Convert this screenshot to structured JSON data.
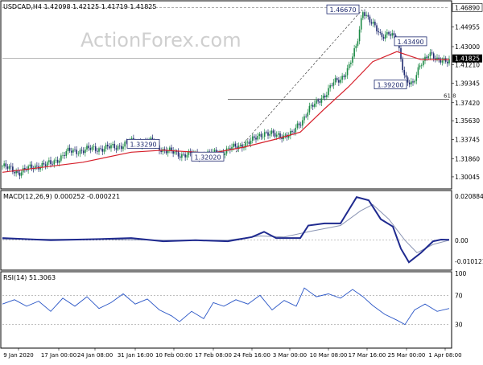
{
  "chart_data": [
    {
      "type": "candlestick",
      "panel": "price",
      "title": "USDCAD,H4  1.42098 1.42125 1.41719 1.41825",
      "watermark": "ActionForex.com",
      "ylim": [
        1.29,
        1.474
      ],
      "y_ticks": [
        1.30045,
        1.3186,
        1.33745,
        1.3563,
        1.3742,
        1.39345,
        1.4121,
        1.43,
        1.44955,
        1.4689
      ],
      "y_tick_labels": [
        "1.30045",
        "1.31860",
        "1.33745",
        "1.35630",
        "1.37420",
        "1.39345",
        "1.41210",
        "1.43000",
        "1.44955"
      ],
      "top_label": "1.46890",
      "current_price": 1.41825,
      "current_price_label": "1.41825",
      "price_series_anchors": [
        [
          0,
          1.311
        ],
        [
          20,
          1.305
        ],
        [
          45,
          1.312
        ],
        [
          60,
          1.313
        ],
        [
          80,
          1.325
        ],
        [
          110,
          1.328
        ],
        [
          140,
          1.33
        ],
        [
          160,
          1.335
        ],
        [
          185,
          1.335
        ],
        [
          200,
          1.327
        ],
        [
          220,
          1.323
        ],
        [
          245,
          1.322
        ],
        [
          268,
          1.324
        ],
        [
          290,
          1.33
        ],
        [
          310,
          1.336
        ],
        [
          325,
          1.345
        ],
        [
          340,
          1.341
        ],
        [
          360,
          1.343
        ],
        [
          368,
          1.352
        ],
        [
          372,
          1.356
        ],
        [
          380,
          1.368
        ],
        [
          390,
          1.373
        ],
        [
          400,
          1.382
        ],
        [
          410,
          1.393
        ],
        [
          420,
          1.397
        ],
        [
          430,
          1.41
        ],
        [
          440,
          1.43
        ],
        [
          448,
          1.467
        ],
        [
          460,
          1.452
        ],
        [
          470,
          1.44
        ],
        [
          480,
          1.445
        ],
        [
          490,
          1.435
        ],
        [
          500,
          1.4
        ],
        [
          510,
          1.392
        ],
        [
          520,
          1.413
        ],
        [
          530,
          1.425
        ],
        [
          540,
          1.415
        ],
        [
          555,
          1.418
        ]
      ],
      "moving_average": [
        [
          0,
          1.305
        ],
        [
          100,
          1.315
        ],
        [
          160,
          1.325
        ],
        [
          200,
          1.327
        ],
        [
          260,
          1.324
        ],
        [
          300,
          1.33
        ],
        [
          340,
          1.338
        ],
        [
          370,
          1.345
        ],
        [
          400,
          1.368
        ],
        [
          430,
          1.39
        ],
        [
          460,
          1.415
        ],
        [
          490,
          1.425
        ],
        [
          520,
          1.417
        ],
        [
          555,
          1.417
        ]
      ],
      "annotations": [
        {
          "label": "1.46670",
          "value": 1.4667
        },
        {
          "label": "1.43490",
          "value": 1.4349
        },
        {
          "label": "1.39200",
          "value": 1.392
        },
        {
          "label": "1.33290",
          "value": 1.3329
        },
        {
          "label": "1.32020",
          "value": 1.3202
        }
      ],
      "fib_level": {
        "label": "61.8",
        "value": 1.3776
      }
    },
    {
      "type": "line",
      "panel": "macd",
      "title": "MACD(12,26,9) 0.000252 -0.000221",
      "ylim": [
        -0.0135,
        0.0225
      ],
      "y_ticks": [
        0.020884,
        0.0,
        -0.010121
      ],
      "y_tick_labels": [
        "0.020884",
        "0.00",
        "-0.010121"
      ],
      "macd": [
        [
          0,
          0.001
        ],
        [
          60,
          0.0
        ],
        [
          120,
          0.0005
        ],
        [
          160,
          0.001
        ],
        [
          200,
          -0.0005
        ],
        [
          240,
          0.0
        ],
        [
          280,
          -0.0005
        ],
        [
          310,
          0.0015
        ],
        [
          325,
          0.004
        ],
        [
          340,
          0.001
        ],
        [
          370,
          0.001
        ],
        [
          380,
          0.007
        ],
        [
          400,
          0.008
        ],
        [
          420,
          0.008
        ],
        [
          440,
          0.0205
        ],
        [
          455,
          0.019
        ],
        [
          470,
          0.01
        ],
        [
          485,
          0.0065
        ],
        [
          495,
          -0.004
        ],
        [
          505,
          -0.0105
        ],
        [
          520,
          -0.006
        ],
        [
          535,
          -0.0005
        ],
        [
          545,
          0.0003
        ],
        [
          555,
          0.0002
        ]
      ],
      "signal": [
        [
          0,
          0.0005
        ],
        [
          120,
          0.0004
        ],
        [
          200,
          0.0
        ],
        [
          280,
          0.0
        ],
        [
          320,
          0.002
        ],
        [
          350,
          0.0015
        ],
        [
          380,
          0.004
        ],
        [
          420,
          0.007
        ],
        [
          445,
          0.014
        ],
        [
          460,
          0.017
        ],
        [
          480,
          0.01
        ],
        [
          500,
          0.0
        ],
        [
          515,
          -0.006
        ],
        [
          535,
          -0.002
        ],
        [
          555,
          0.0
        ]
      ]
    },
    {
      "type": "line",
      "panel": "rsi",
      "title": "RSI(14) 51.3063",
      "ylim": [
        0,
        100
      ],
      "y_ticks": [
        100,
        70,
        50,
        30
      ],
      "y_tick_labels": [
        "100",
        "70",
        "",
        "30"
      ],
      "rsi": [
        [
          0,
          58
        ],
        [
          15,
          64
        ],
        [
          30,
          55
        ],
        [
          45,
          62
        ],
        [
          60,
          48
        ],
        [
          75,
          66
        ],
        [
          90,
          55
        ],
        [
          105,
          68
        ],
        [
          120,
          52
        ],
        [
          135,
          60
        ],
        [
          150,
          72
        ],
        [
          165,
          58
        ],
        [
          180,
          65
        ],
        [
          195,
          50
        ],
        [
          210,
          42
        ],
        [
          220,
          34
        ],
        [
          235,
          48
        ],
        [
          250,
          38
        ],
        [
          262,
          60
        ],
        [
          275,
          55
        ],
        [
          290,
          64
        ],
        [
          305,
          58
        ],
        [
          320,
          70
        ],
        [
          335,
          50
        ],
        [
          350,
          63
        ],
        [
          365,
          55
        ],
        [
          375,
          80
        ],
        [
          390,
          68
        ],
        [
          405,
          72
        ],
        [
          420,
          66
        ],
        [
          435,
          78
        ],
        [
          448,
          68
        ],
        [
          460,
          56
        ],
        [
          475,
          44
        ],
        [
          490,
          36
        ],
        [
          500,
          30
        ],
        [
          512,
          50
        ],
        [
          525,
          58
        ],
        [
          540,
          48
        ],
        [
          555,
          52
        ]
      ]
    }
  ],
  "x_axis_labels": [
    {
      "label": "9 Jan 2020",
      "x": 20
    },
    {
      "label": "17 Jan 00:00",
      "x": 70
    },
    {
      "label": "24 Jan 08:00",
      "x": 115
    },
    {
      "label": "31 Jan 16:00",
      "x": 165
    },
    {
      "label": "10 Feb 00:00",
      "x": 213
    },
    {
      "label": "17 Feb 08:00",
      "x": 262
    },
    {
      "label": "24 Feb 16:00",
      "x": 310
    },
    {
      "label": "3 Mar 00:00",
      "x": 357
    },
    {
      "label": "10 Mar 08:00",
      "x": 405
    },
    {
      "label": "17 Mar 16:00",
      "x": 453
    },
    {
      "label": "25 Mar 00:00",
      "x": 502
    },
    {
      "label": "1 Apr 08:00",
      "x": 550
    }
  ],
  "colors": {
    "up_candle": "#1c8a45",
    "down_candle": "#1f2a6f",
    "moving_average": "#d6202b",
    "macd": "#1f2a8f",
    "signal": "#8a94b3",
    "rsi": "#2a56c6",
    "grid": "#bfbfbf"
  }
}
